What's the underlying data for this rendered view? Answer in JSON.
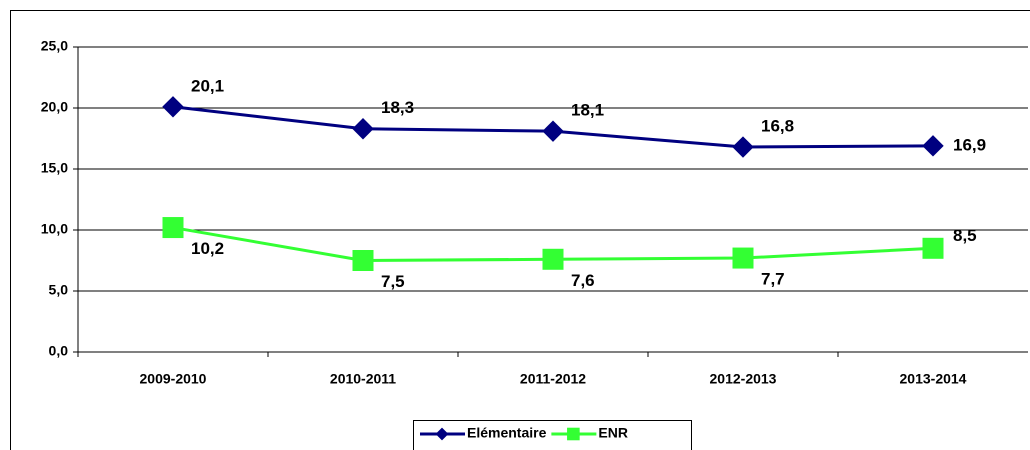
{
  "chart_data": {
    "type": "line",
    "categories": [
      "2009-2010",
      "2010-2011",
      "2011-2012",
      "2012-2013",
      "2013-2014"
    ],
    "series": [
      {
        "name": "Elémentaire",
        "color": "#000080",
        "values": [
          20.1,
          18.3,
          18.1,
          16.8,
          16.9
        ],
        "value_labels": [
          "20,1",
          "18,3",
          "18,1",
          "16,8",
          "16,9"
        ]
      },
      {
        "name": "ENR",
        "color": "#33ff33",
        "values": [
          10.2,
          7.5,
          7.6,
          7.7,
          8.5
        ],
        "value_labels": [
          "10,2",
          "7,5",
          "7,6",
          "7,7",
          "8,5"
        ]
      }
    ],
    "ylim": [
      0,
      25
    ],
    "yticks": [
      {
        "value": 0,
        "label": "0,0"
      },
      {
        "value": 5,
        "label": "5,0"
      },
      {
        "value": 10,
        "label": "10,0"
      },
      {
        "value": 15,
        "label": "15,0"
      },
      {
        "value": 20,
        "label": "20,0"
      },
      {
        "value": 25,
        "label": "25,0"
      }
    ],
    "grid": true,
    "legend": "bottom"
  }
}
